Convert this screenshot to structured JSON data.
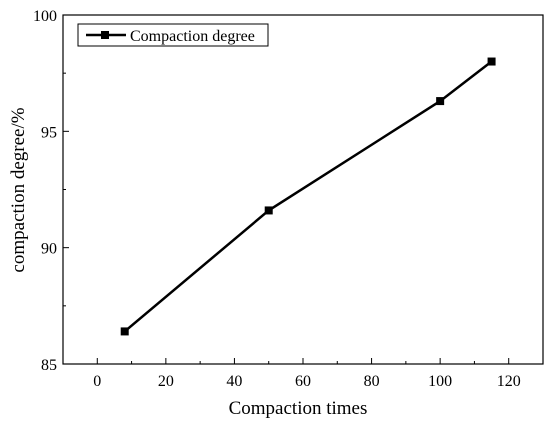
{
  "chart_data": {
    "type": "line",
    "xlabel": "Compaction times",
    "ylabel": "compaction degree/%",
    "xlim": [
      -10,
      130
    ],
    "ylim": [
      85,
      100
    ],
    "x_ticks": [
      0,
      20,
      40,
      60,
      80,
      100,
      120
    ],
    "y_ticks": [
      85,
      90,
      95,
      100
    ],
    "x_tick_labels": [
      "0",
      "20",
      "40",
      "60",
      "80",
      "100",
      "120"
    ],
    "y_tick_labels": [
      "85",
      "90",
      "95",
      "100"
    ],
    "grid": false,
    "legend_position": "top-left",
    "series": [
      {
        "name": "Compaction degree",
        "color": "#000000",
        "marker": "square",
        "x": [
          8,
          50,
          100,
          115
        ],
        "y": [
          86.4,
          91.6,
          96.3,
          98.0
        ]
      }
    ]
  }
}
